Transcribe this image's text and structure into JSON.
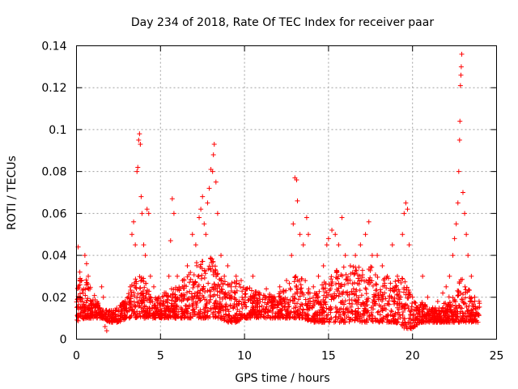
{
  "chart_data": {
    "type": "scatter",
    "title": "Day 234 of 2018, Rate Of TEC Index for receiver paar",
    "xlabel": "GPS time / hours",
    "ylabel": "ROTI / TECUs",
    "xlim": [
      0,
      25
    ],
    "ylim": [
      0,
      0.14
    ],
    "xticks": [
      0,
      5,
      10,
      15,
      20,
      25
    ],
    "xtick_labels": [
      "0",
      "5",
      "10",
      "15",
      "20",
      "25"
    ],
    "yticks": [
      0,
      0.02,
      0.04,
      0.06,
      0.08,
      0.1,
      0.12,
      0.14
    ],
    "ytick_labels": [
      "0",
      "0.02",
      "0.04",
      "0.06",
      "0.08",
      "0.1",
      "0.12",
      "0.14"
    ],
    "grid": true,
    "marker": "+",
    "color": "#ff0000",
    "series": [
      {
        "name": "ROTI",
        "points": [
          [
            0.1,
            0.044
          ],
          [
            0.2,
            0.032
          ],
          [
            0.3,
            0.028
          ],
          [
            0.4,
            0.022
          ],
          [
            0.5,
            0.04
          ],
          [
            0.6,
            0.036
          ],
          [
            0.7,
            0.03
          ],
          [
            0.8,
            0.024
          ],
          [
            1.0,
            0.016
          ],
          [
            1.2,
            0.012
          ],
          [
            1.5,
            0.025
          ],
          [
            1.6,
            0.02
          ],
          [
            1.7,
            0.006
          ],
          [
            1.8,
            0.004
          ],
          [
            2.0,
            0.01
          ],
          [
            2.3,
            0.012
          ],
          [
            2.6,
            0.016
          ],
          [
            2.9,
            0.018
          ],
          [
            3.2,
            0.025
          ],
          [
            3.3,
            0.05
          ],
          [
            3.4,
            0.056
          ],
          [
            3.5,
            0.045
          ],
          [
            3.6,
            0.08
          ],
          [
            3.65,
            0.082
          ],
          [
            3.7,
            0.095
          ],
          [
            3.75,
            0.098
          ],
          [
            3.8,
            0.093
          ],
          [
            3.85,
            0.068
          ],
          [
            3.9,
            0.06
          ],
          [
            4.0,
            0.045
          ],
          [
            4.1,
            0.04
          ],
          [
            4.2,
            0.062
          ],
          [
            4.3,
            0.06
          ],
          [
            4.4,
            0.03
          ],
          [
            4.6,
            0.025
          ],
          [
            4.9,
            0.02
          ],
          [
            5.2,
            0.018
          ],
          [
            5.5,
            0.03
          ],
          [
            5.6,
            0.047
          ],
          [
            5.7,
            0.067
          ],
          [
            5.8,
            0.06
          ],
          [
            6.0,
            0.03
          ],
          [
            6.3,
            0.025
          ],
          [
            6.6,
            0.035
          ],
          [
            6.9,
            0.05
          ],
          [
            7.1,
            0.045
          ],
          [
            7.3,
            0.058
          ],
          [
            7.4,
            0.062
          ],
          [
            7.5,
            0.068
          ],
          [
            7.6,
            0.055
          ],
          [
            7.7,
            0.05
          ],
          [
            7.8,
            0.065
          ],
          [
            7.9,
            0.072
          ],
          [
            8.0,
            0.081
          ],
          [
            8.1,
            0.08
          ],
          [
            8.15,
            0.088
          ],
          [
            8.2,
            0.093
          ],
          [
            8.3,
            0.075
          ],
          [
            8.4,
            0.06
          ],
          [
            8.6,
            0.04
          ],
          [
            8.8,
            0.03
          ],
          [
            9.0,
            0.035
          ],
          [
            9.2,
            0.025
          ],
          [
            9.5,
            0.03
          ],
          [
            9.8,
            0.028
          ],
          [
            10.1,
            0.024
          ],
          [
            10.5,
            0.03
          ],
          [
            10.9,
            0.022
          ],
          [
            11.3,
            0.024
          ],
          [
            11.7,
            0.02
          ],
          [
            12.1,
            0.025
          ],
          [
            12.5,
            0.028
          ],
          [
            12.8,
            0.04
          ],
          [
            12.9,
            0.055
          ],
          [
            13.0,
            0.077
          ],
          [
            13.1,
            0.076
          ],
          [
            13.15,
            0.066
          ],
          [
            13.3,
            0.05
          ],
          [
            13.5,
            0.045
          ],
          [
            13.7,
            0.058
          ],
          [
            13.8,
            0.05
          ],
          [
            14.1,
            0.025
          ],
          [
            14.4,
            0.03
          ],
          [
            14.7,
            0.035
          ],
          [
            14.9,
            0.045
          ],
          [
            15.0,
            0.048
          ],
          [
            15.2,
            0.052
          ],
          [
            15.4,
            0.05
          ],
          [
            15.6,
            0.045
          ],
          [
            15.8,
            0.058
          ],
          [
            16.0,
            0.04
          ],
          [
            16.3,
            0.035
          ],
          [
            16.6,
            0.04
          ],
          [
            16.9,
            0.045
          ],
          [
            17.2,
            0.05
          ],
          [
            17.4,
            0.056
          ],
          [
            17.6,
            0.04
          ],
          [
            17.9,
            0.04
          ],
          [
            18.2,
            0.035
          ],
          [
            18.5,
            0.03
          ],
          [
            18.8,
            0.045
          ],
          [
            19.1,
            0.03
          ],
          [
            19.4,
            0.05
          ],
          [
            19.5,
            0.06
          ],
          [
            19.6,
            0.065
          ],
          [
            19.7,
            0.062
          ],
          [
            19.8,
            0.045
          ],
          [
            20.0,
            0.02
          ],
          [
            20.3,
            0.015
          ],
          [
            20.6,
            0.03
          ],
          [
            20.9,
            0.02
          ],
          [
            21.2,
            0.015
          ],
          [
            21.5,
            0.018
          ],
          [
            21.8,
            0.022
          ],
          [
            22.0,
            0.025
          ],
          [
            22.2,
            0.03
          ],
          [
            22.4,
            0.04
          ],
          [
            22.5,
            0.048
          ],
          [
            22.6,
            0.055
          ],
          [
            22.7,
            0.065
          ],
          [
            22.75,
            0.08
          ],
          [
            22.8,
            0.095
          ],
          [
            22.82,
            0.104
          ],
          [
            22.85,
            0.121
          ],
          [
            22.88,
            0.126
          ],
          [
            22.9,
            0.13
          ],
          [
            22.93,
            0.136
          ],
          [
            23.0,
            0.07
          ],
          [
            23.1,
            0.06
          ],
          [
            23.2,
            0.05
          ],
          [
            23.3,
            0.04
          ],
          [
            23.5,
            0.03
          ],
          [
            23.7,
            0.02
          ],
          [
            23.9,
            0.015
          ]
        ]
      }
    ],
    "dense_band": {
      "description_hidden": "",
      "x": [
        0,
        0.5,
        1,
        1.5,
        2,
        2.5,
        3,
        3.5,
        4,
        4.5,
        5,
        5.5,
        6,
        6.5,
        7,
        7.5,
        8,
        8.5,
        9,
        9.5,
        10,
        10.5,
        11,
        11.5,
        12,
        12.5,
        13,
        13.5,
        14,
        14.5,
        15,
        15.5,
        16,
        16.5,
        17,
        17.5,
        18,
        18.5,
        19,
        19.5,
        20,
        20.5,
        21,
        21.5,
        22,
        22.5,
        23,
        23.5,
        24
      ],
      "low": [
        0.008,
        0.01,
        0.01,
        0.01,
        0.008,
        0.008,
        0.01,
        0.01,
        0.01,
        0.01,
        0.01,
        0.01,
        0.01,
        0.01,
        0.01,
        0.01,
        0.01,
        0.01,
        0.008,
        0.008,
        0.01,
        0.01,
        0.01,
        0.01,
        0.01,
        0.01,
        0.01,
        0.01,
        0.008,
        0.008,
        0.008,
        0.008,
        0.008,
        0.008,
        0.008,
        0.008,
        0.008,
        0.008,
        0.008,
        0.005,
        0.005,
        0.008,
        0.008,
        0.008,
        0.008,
        0.008,
        0.008,
        0.008,
        0.008
      ],
      "high": [
        0.03,
        0.03,
        0.022,
        0.014,
        0.014,
        0.016,
        0.02,
        0.03,
        0.03,
        0.02,
        0.02,
        0.025,
        0.025,
        0.03,
        0.035,
        0.04,
        0.04,
        0.03,
        0.028,
        0.028,
        0.025,
        0.025,
        0.022,
        0.022,
        0.022,
        0.025,
        0.03,
        0.03,
        0.022,
        0.025,
        0.03,
        0.035,
        0.035,
        0.035,
        0.035,
        0.035,
        0.03,
        0.03,
        0.03,
        0.03,
        0.018,
        0.018,
        0.015,
        0.015,
        0.018,
        0.025,
        0.03,
        0.022,
        0.018
      ]
    }
  }
}
